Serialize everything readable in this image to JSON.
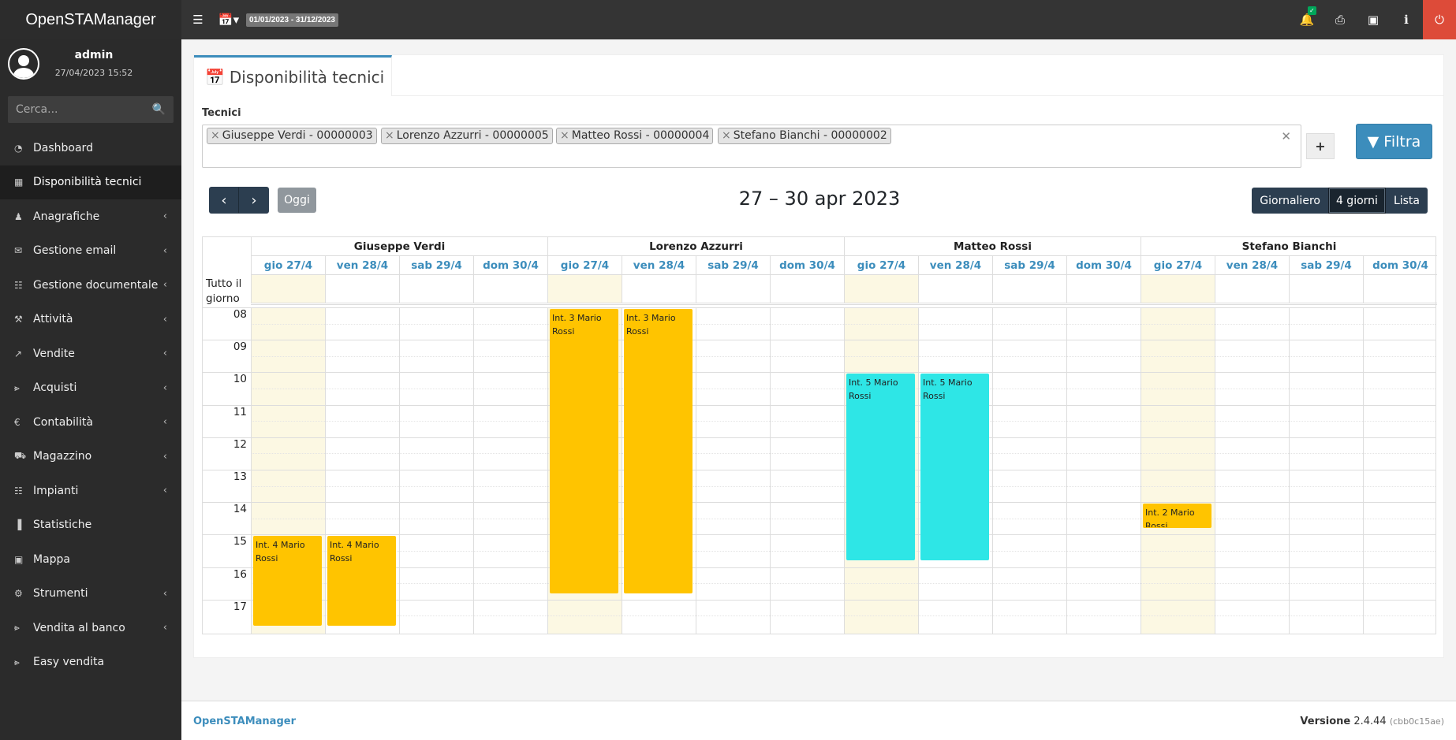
{
  "app": {
    "title": "OpenSTAManager"
  },
  "topbar": {
    "date_range": "01/01/2023 - 31/12/2023"
  },
  "user": {
    "name": "admin",
    "datetime": "27/04/2023 15:52"
  },
  "search": {
    "placeholder": "Cerca..."
  },
  "menu": [
    {
      "label": "Dashboard",
      "icon": "dashboard-icon",
      "submenu": false
    },
    {
      "label": "Disponibilità tecnici",
      "icon": "calendar-icon",
      "submenu": false,
      "active": true
    },
    {
      "label": "Anagrafiche",
      "icon": "users-icon",
      "submenu": true
    },
    {
      "label": "Gestione email",
      "icon": "envelope-icon",
      "submenu": true
    },
    {
      "label": "Gestione documentale",
      "icon": "document-icon",
      "submenu": true
    },
    {
      "label": "Attività",
      "icon": "wrench-icon",
      "submenu": true
    },
    {
      "label": "Vendite",
      "icon": "chart-line-icon",
      "submenu": true
    },
    {
      "label": "Acquisti",
      "icon": "cart-icon",
      "submenu": true
    },
    {
      "label": "Contabilità",
      "icon": "euro-icon",
      "submenu": true
    },
    {
      "label": "Magazzino",
      "icon": "truck-icon",
      "submenu": true
    },
    {
      "label": "Impianti",
      "icon": "plug-icon",
      "submenu": true
    },
    {
      "label": "Statistiche",
      "icon": "bar-chart-icon",
      "submenu": false
    },
    {
      "label": "Mappa",
      "icon": "map-icon",
      "submenu": false
    },
    {
      "label": "Strumenti",
      "icon": "cog-icon",
      "submenu": true
    },
    {
      "label": "Vendita al banco",
      "icon": "cart-icon",
      "submenu": true
    },
    {
      "label": "Easy vendita",
      "icon": "cart-icon",
      "submenu": false
    }
  ],
  "page": {
    "title": "Disponibilità tecnici",
    "tecnici_label": "Tecnici",
    "selected_tecnici": [
      "Giuseppe Verdi - 00000003",
      "Lorenzo Azzurri - 00000005",
      "Matteo Rossi - 00000004",
      "Stefano Bianchi - 00000002"
    ],
    "filter_button": "Filtra",
    "today_button": "Oggi",
    "calendar_title": "27 – 30 apr 2023",
    "views": [
      "Giornaliero",
      "4 giorni",
      "Lista"
    ],
    "active_view": "4 giorni"
  },
  "calendar": {
    "resources": [
      "Giuseppe Verdi",
      "Lorenzo Azzurri",
      "Matteo Rossi",
      "Stefano Bianchi"
    ],
    "days": [
      "gio 27/4",
      "ven 28/4",
      "sab 29/4",
      "dom 30/4"
    ],
    "all_day_label": "Tutto il giorno",
    "hours": [
      "08",
      "09",
      "10",
      "11",
      "12",
      "13",
      "14",
      "15",
      "16",
      "17"
    ],
    "events": [
      {
        "resource": "Giuseppe Verdi",
        "day": "gio 27/4",
        "start": "15:00",
        "end": "17:45",
        "title": "Int. 4 Mario Rossi",
        "color": "#ffc400"
      },
      {
        "resource": "Giuseppe Verdi",
        "day": "ven 28/4",
        "start": "15:00",
        "end": "17:45",
        "title": "Int. 4 Mario Rossi",
        "color": "#ffc400"
      },
      {
        "resource": "Lorenzo Azzurri",
        "day": "gio 27/4",
        "start": "08:00",
        "end": "16:45",
        "title": "Int. 3 Mario Rossi",
        "color": "#ffc400"
      },
      {
        "resource": "Lorenzo Azzurri",
        "day": "ven 28/4",
        "start": "08:00",
        "end": "16:45",
        "title": "Int. 3 Mario Rossi",
        "color": "#ffc400"
      },
      {
        "resource": "Matteo Rossi",
        "day": "gio 27/4",
        "start": "10:00",
        "end": "15:45",
        "title": "Int. 5 Mario Rossi",
        "color": "#2ee6e6"
      },
      {
        "resource": "Matteo Rossi",
        "day": "ven 28/4",
        "start": "10:00",
        "end": "15:45",
        "title": "Int. 5 Mario Rossi",
        "color": "#2ee6e6"
      },
      {
        "resource": "Stefano Bianchi",
        "day": "gio 27/4",
        "start": "14:00",
        "end": "14:45",
        "title": "Int. 2 Mario Rossi",
        "color": "#ffc400"
      }
    ]
  },
  "footer": {
    "brand": "OpenSTAManager",
    "version_label": "Versione",
    "version": "2.4.44",
    "build": "(cbb0c15ae)"
  }
}
